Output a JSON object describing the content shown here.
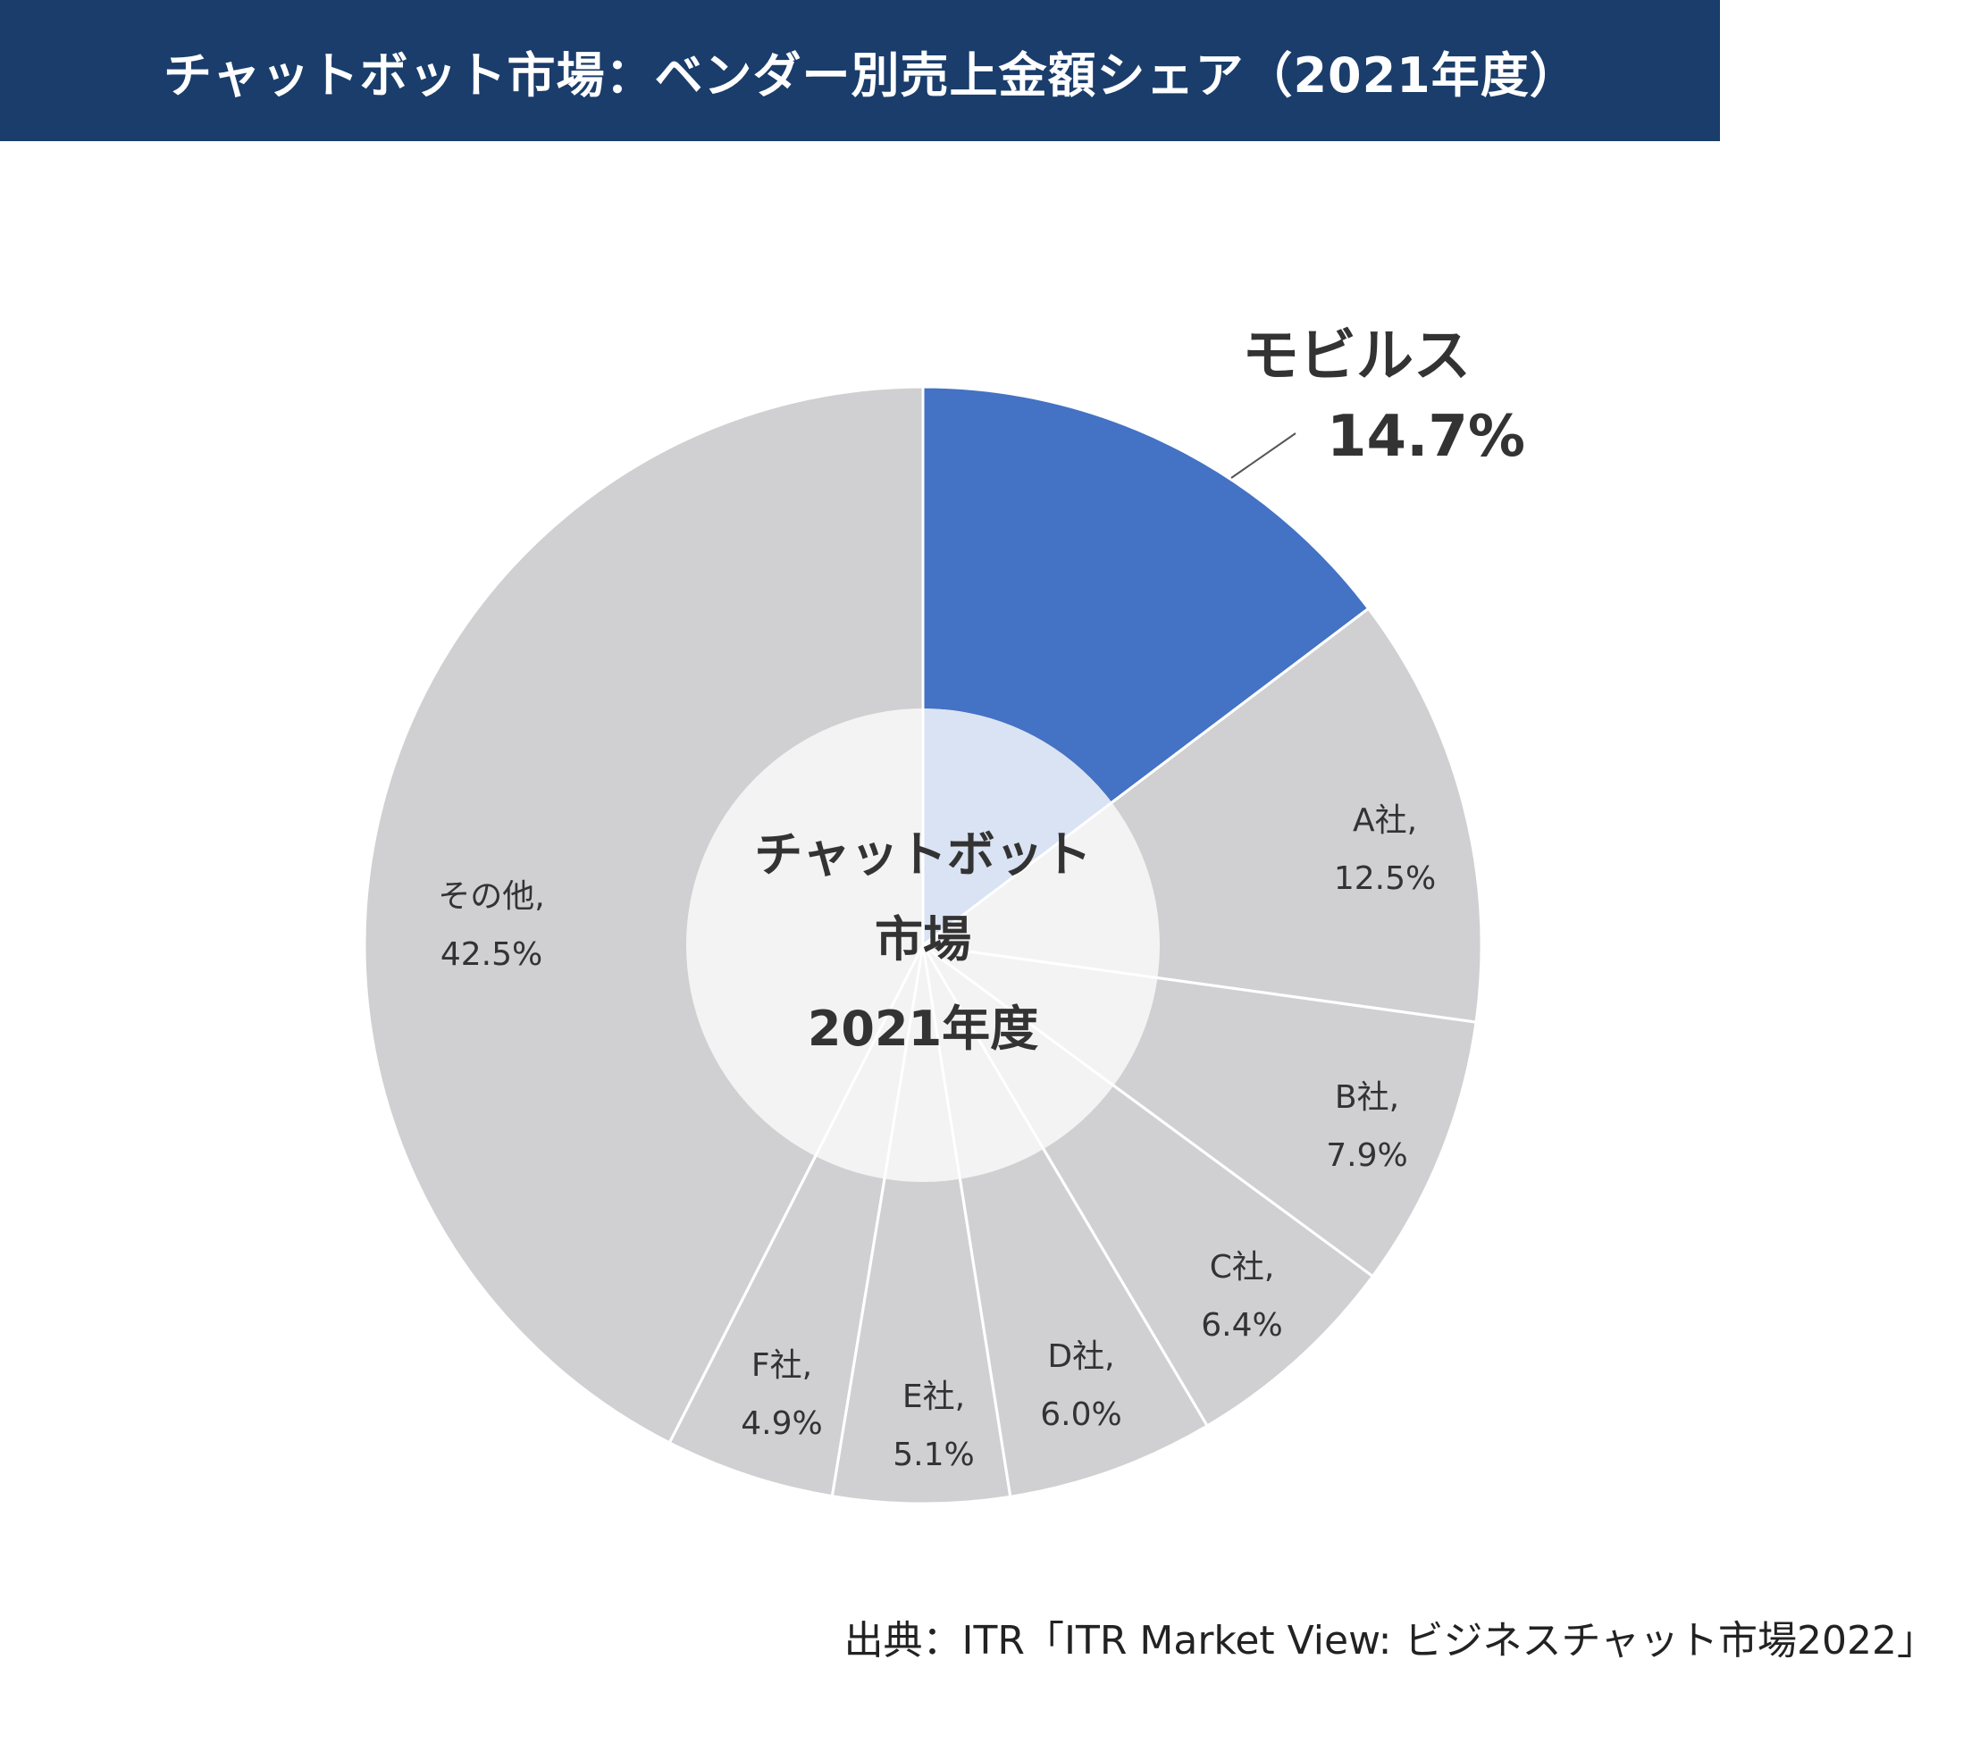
{
  "header": {
    "title": "チャットボット市場：ベンダー別売上金額シェア（2021年度）"
  },
  "chart_data": {
    "type": "pie",
    "variant": "donut",
    "center_label": [
      "チャットボット",
      "市場",
      "2021年度"
    ],
    "slices": [
      {
        "label": "モビルス",
        "value": 14.7,
        "value_text": "14.7%",
        "color": "#4472c4",
        "highlight": true
      },
      {
        "label": "A社,",
        "value": 12.5,
        "value_text": "12.5%",
        "color": "#d0cfd1"
      },
      {
        "label": "B社,",
        "value": 7.9,
        "value_text": "7.9%",
        "color": "#d0cfd1"
      },
      {
        "label": "C社,",
        "value": 6.4,
        "value_text": "6.4%",
        "color": "#d0cfd1"
      },
      {
        "label": "D社,",
        "value": 6.0,
        "value_text": "6.0%",
        "color": "#d0cfd1"
      },
      {
        "label": "E社,",
        "value": 5.1,
        "value_text": "5.1%",
        "color": "#d0cfd1"
      },
      {
        "label": "F社,",
        "value": 4.9,
        "value_text": "4.9%",
        "color": "#d0cfd1"
      },
      {
        "label": "その他,",
        "value": 42.5,
        "value_text": "42.5%",
        "color": "#d0cfd1"
      }
    ],
    "inner_colors": {
      "highlight": "#dae3f3",
      "default": "#f3f3f3"
    }
  },
  "footer": {
    "source": "出典：ITR「ITR Market View: ビジネスチャット市場2022」"
  }
}
